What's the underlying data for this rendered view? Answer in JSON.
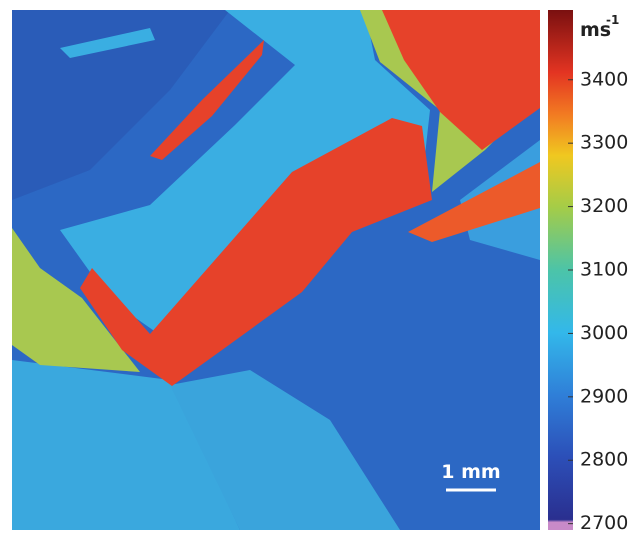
{
  "colorbar": {
    "unit": "ms",
    "unit_exponent": "-1",
    "lim": [
      2690,
      3510
    ],
    "ticks": [
      2700,
      2800,
      2900,
      3000,
      3100,
      3200,
      3300,
      3400
    ]
  },
  "scale_bar": {
    "label": "1 mm"
  }
}
